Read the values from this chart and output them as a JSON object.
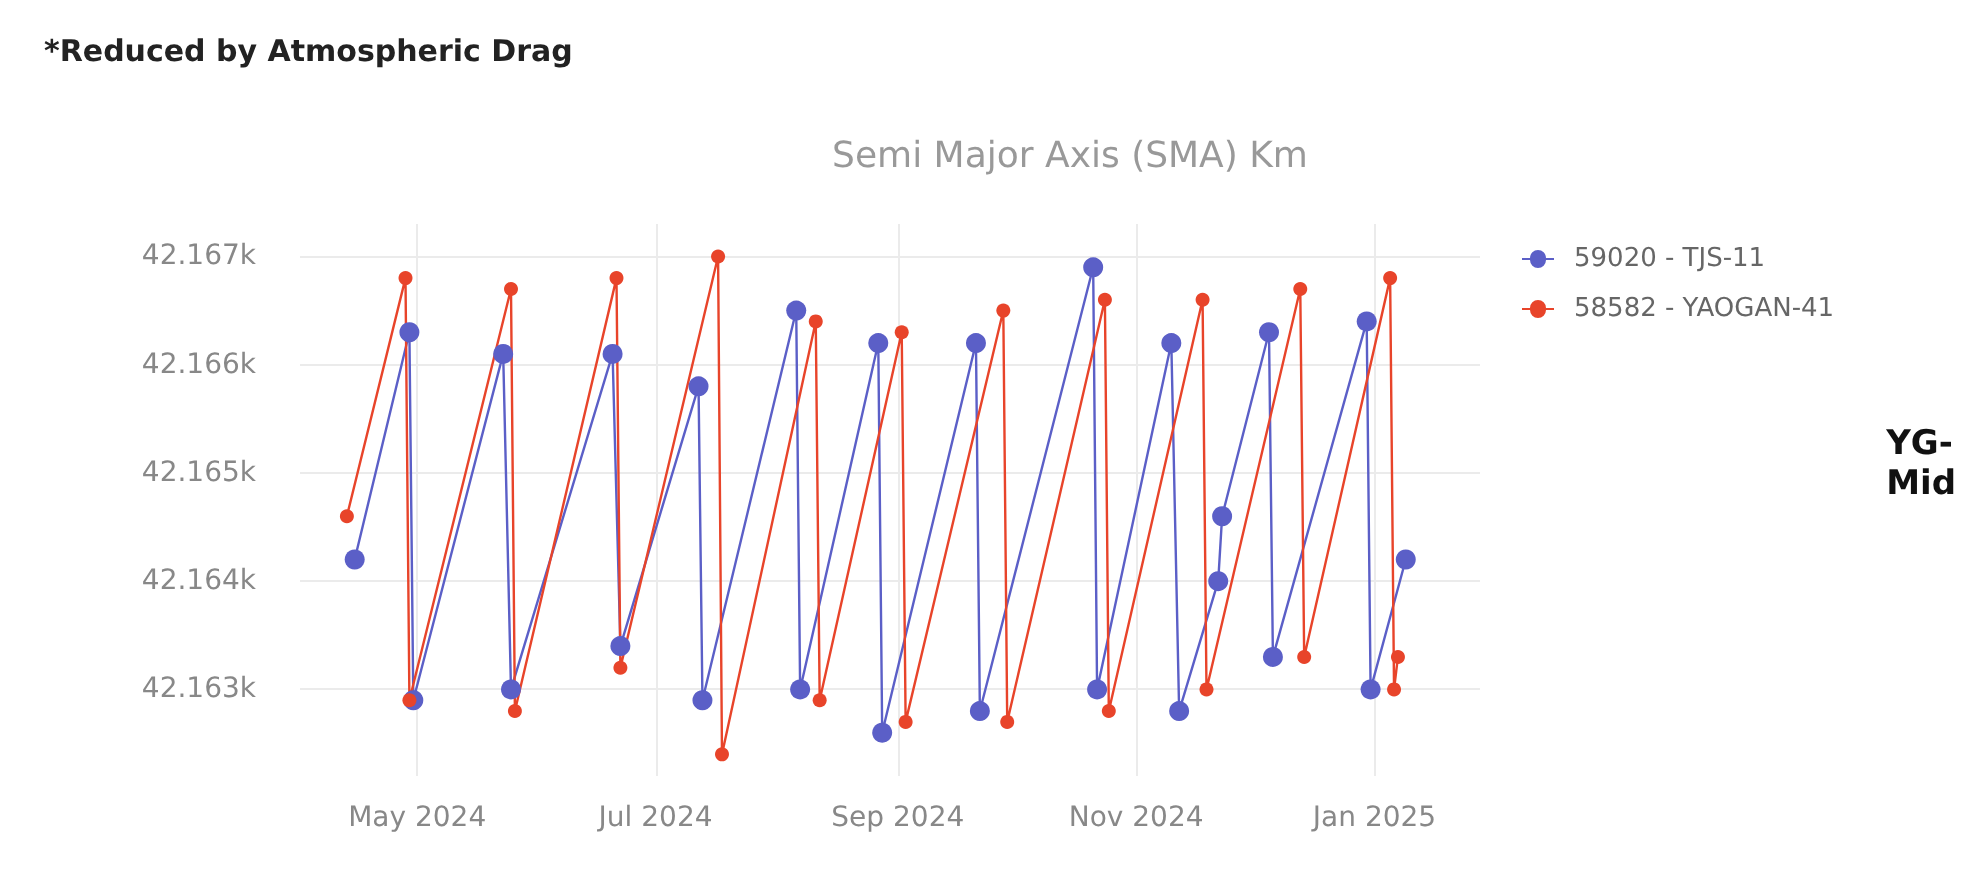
{
  "chart_data": {
    "type": "line",
    "title": "Semi Major Axis (SMA) Km",
    "annotations": [
      "*Reduced by Atmospheric Drag",
      "YG-\nMid"
    ],
    "series": [
      {
        "name": "59020 - TJS-11",
        "color": "#5b5fc7",
        "x": [
          "2024-04-15",
          "2024-04-29",
          "2024-04-30",
          "2024-05-23",
          "2024-05-25",
          "2024-06-20",
          "2024-06-22",
          "2024-07-12",
          "2024-07-13",
          "2024-08-06",
          "2024-08-07",
          "2024-08-27",
          "2024-08-28",
          "2024-09-21",
          "2024-09-22",
          "2024-10-21",
          "2024-10-22",
          "2024-11-10",
          "2024-11-12",
          "2024-11-22",
          "2024-11-23",
          "2024-12-05",
          "2024-12-06",
          "2024-12-30",
          "2024-12-31",
          "2025-01-09"
        ],
        "values": [
          42164.2,
          42166.3,
          42162.9,
          42166.1,
          42163.0,
          42166.1,
          42163.4,
          42165.8,
          42162.9,
          42166.5,
          42163.0,
          42166.2,
          42162.6,
          42166.2,
          42162.8,
          42166.9,
          42163.0,
          42166.2,
          42162.8,
          42164.0,
          42164.6,
          42166.3,
          42163.3,
          42166.4,
          42163.0,
          42164.2
        ]
      },
      {
        "name": "58582 - YAOGAN-41",
        "color": "#e8442a",
        "x": [
          "2024-04-13",
          "2024-04-28",
          "2024-04-29",
          "2024-05-25",
          "2024-05-26",
          "2024-06-21",
          "2024-06-22",
          "2024-07-17",
          "2024-07-18",
          "2024-08-11",
          "2024-08-12",
          "2024-09-02",
          "2024-09-03",
          "2024-09-28",
          "2024-09-29",
          "2024-10-24",
          "2024-10-25",
          "2024-11-18",
          "2024-11-19",
          "2024-12-13",
          "2024-12-14",
          "2025-01-05",
          "2025-01-06",
          "2025-01-07"
        ],
        "values": [
          42164.6,
          42166.8,
          42162.9,
          42166.7,
          42162.8,
          42166.8,
          42163.2,
          42167.0,
          42162.4,
          42166.4,
          42162.9,
          42166.3,
          42162.7,
          42166.5,
          42162.7,
          42166.6,
          42162.8,
          42166.6,
          42163.0,
          42166.7,
          42163.3,
          42166.8,
          42163.0,
          42163.3
        ]
      }
    ],
    "xlim": [
      "2024-04-01",
      "2025-01-28"
    ],
    "xticks": [
      {
        "value": "2024-05-01",
        "label": "May 2024"
      },
      {
        "value": "2024-07-01",
        "label": "Jul 2024"
      },
      {
        "value": "2024-09-01",
        "label": "Sep 2024"
      },
      {
        "value": "2024-11-01",
        "label": "Nov 2024"
      },
      {
        "value": "2025-01-01",
        "label": "Jan 2025"
      }
    ],
    "ylim": [
      42162.2,
      42167.3
    ],
    "yticks": [
      {
        "value": 42163,
        "label": "42.163k"
      },
      {
        "value": 42164,
        "label": "42.164k"
      },
      {
        "value": 42165,
        "label": "42.165k"
      },
      {
        "value": 42166,
        "label": "42.166k"
      },
      {
        "value": 42167,
        "label": "42.167k"
      }
    ],
    "grid": true,
    "legend": "right",
    "marker": "circle",
    "line_style": "solid"
  }
}
